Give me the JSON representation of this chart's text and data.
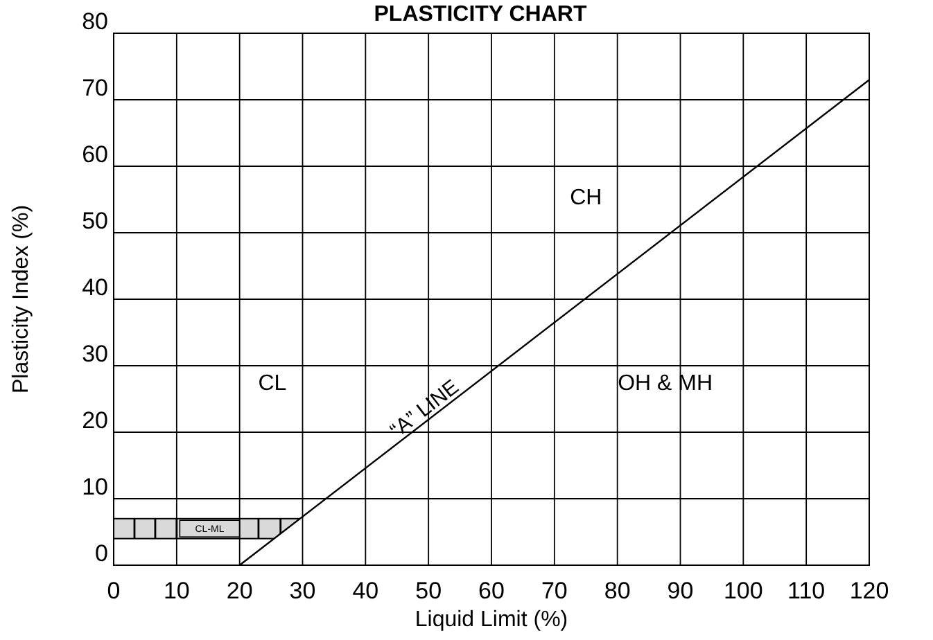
{
  "chart_data": {
    "type": "line",
    "title": "PLASTICITY CHART",
    "xlabel": "Liquid Limit (%)",
    "ylabel": "Plasticity Index (%)",
    "xlim": [
      0,
      120
    ],
    "ylim": [
      0,
      80
    ],
    "xticks": [
      0,
      10,
      20,
      30,
      40,
      50,
      60,
      70,
      80,
      90,
      100,
      110,
      120
    ],
    "yticks": [
      0,
      10,
      20,
      30,
      40,
      50,
      60,
      70,
      80
    ],
    "grid": true,
    "marker": "none",
    "line_style": "solid",
    "series": [
      {
        "name": "“A” LINE",
        "color": "#000000",
        "x": [
          20,
          120
        ],
        "values": [
          0,
          73
        ]
      }
    ],
    "bands": [
      {
        "axis": "y",
        "from": 4,
        "to": 7,
        "label": "CL-ML",
        "color": "#000000"
      }
    ],
    "annotations": [
      "CL",
      "CH",
      "OH & MH"
    ]
  }
}
